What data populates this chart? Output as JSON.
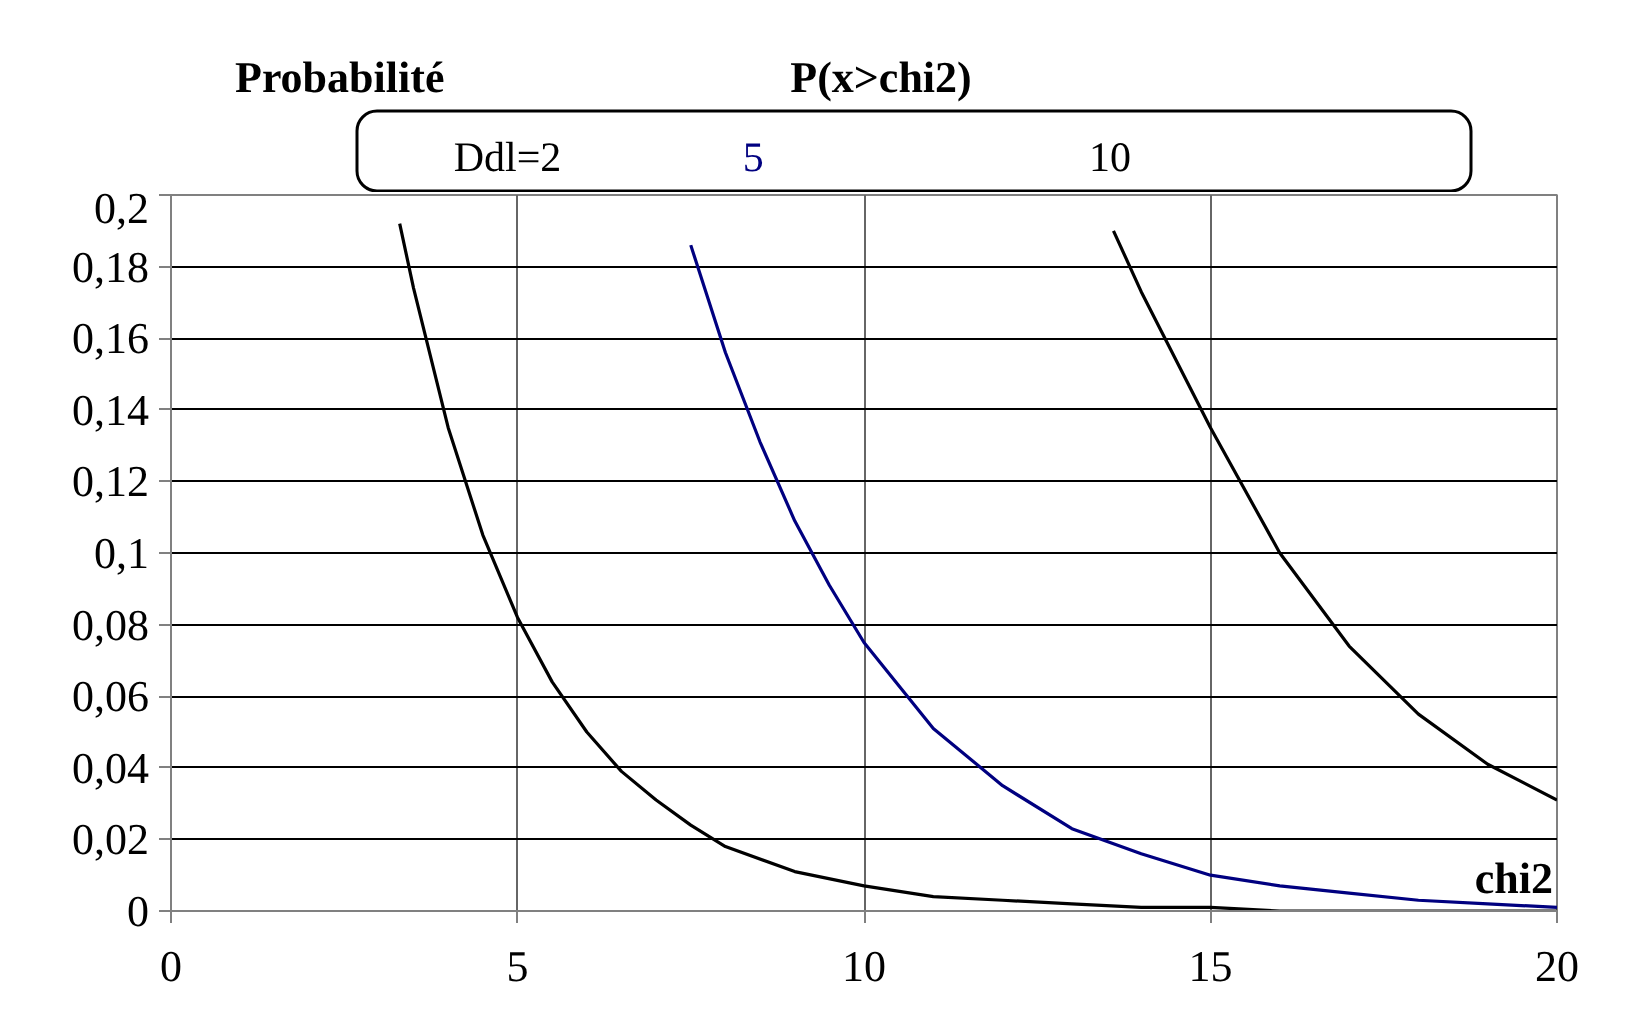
{
  "chart_data": {
    "type": "line",
    "title": "P(x>chi2)",
    "ylabel": "Probabilité",
    "xlabel": "chi2",
    "xlim": [
      0,
      20
    ],
    "xticks": [
      0,
      5,
      10,
      15,
      20
    ],
    "ylim": [
      0,
      0.2
    ],
    "yticks": [
      {
        "value": 0,
        "label": "0"
      },
      {
        "value": 0.02,
        "label": "0,02"
      },
      {
        "value": 0.04,
        "label": "0,04"
      },
      {
        "value": 0.06,
        "label": "0,06"
      },
      {
        "value": 0.08,
        "label": "0,08"
      },
      {
        "value": 0.1,
        "label": "0,1"
      },
      {
        "value": 0.12,
        "label": "0,12"
      },
      {
        "value": 0.14,
        "label": "0,14"
      },
      {
        "value": 0.16,
        "label": "0,16"
      },
      {
        "value": 0.18,
        "label": "0,18"
      },
      {
        "value": 0.2,
        "label": "0,2"
      }
    ],
    "grid": true,
    "legend": false,
    "marker": "none",
    "line_style": "solid",
    "series": [
      {
        "name": "Ddl=2",
        "color": "#000000",
        "x": [
          3.3,
          3.5,
          4,
          4.5,
          5,
          5.5,
          6,
          6.5,
          7,
          7.5,
          8,
          9,
          10,
          11,
          12,
          13,
          14,
          15,
          16,
          18,
          20
        ],
        "values": [
          0.192,
          0.174,
          0.135,
          0.105,
          0.082,
          0.064,
          0.05,
          0.039,
          0.031,
          0.024,
          0.018,
          0.011,
          0.007,
          0.004,
          0.003,
          0.002,
          0.001,
          0.001,
          0.0,
          0.0,
          0.0
        ]
      },
      {
        "name": "5",
        "color": "#000080",
        "x": [
          7.5,
          8,
          8.5,
          9,
          9.5,
          10,
          11,
          12,
          13,
          14,
          15,
          16,
          17,
          18,
          19,
          20
        ],
        "values": [
          0.186,
          0.156,
          0.131,
          0.109,
          0.091,
          0.075,
          0.051,
          0.035,
          0.023,
          0.016,
          0.01,
          0.007,
          0.005,
          0.003,
          0.002,
          0.001
        ]
      },
      {
        "name": "10",
        "color": "#000000",
        "x": [
          13.6,
          14,
          15,
          16,
          17,
          18,
          19,
          20
        ],
        "values": [
          0.19,
          0.173,
          0.135,
          0.1,
          0.074,
          0.055,
          0.041,
          0.031
        ]
      }
    ]
  }
}
